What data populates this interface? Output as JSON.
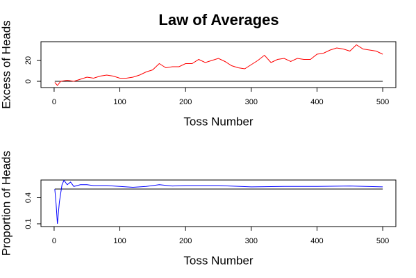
{
  "chart_data": [
    {
      "type": "line",
      "title": "Law of Averages",
      "xlabel": "Toss Number",
      "ylabel": "Excess of Heads",
      "x": [
        1,
        5,
        10,
        20,
        30,
        40,
        50,
        60,
        70,
        80,
        90,
        100,
        110,
        120,
        130,
        140,
        150,
        160,
        170,
        180,
        190,
        200,
        210,
        220,
        230,
        240,
        250,
        260,
        270,
        280,
        290,
        300,
        310,
        320,
        330,
        340,
        350,
        360,
        370,
        380,
        390,
        400,
        410,
        420,
        430,
        440,
        450,
        460,
        470,
        480,
        490,
        500
      ],
      "series": [
        {
          "color": "#ff0000",
          "values": [
            -1,
            -4,
            0,
            1,
            0,
            2,
            4,
            3,
            5,
            6,
            5,
            3,
            3,
            4,
            6,
            9,
            11,
            17,
            13,
            14,
            14,
            17,
            17,
            21,
            18,
            20,
            22,
            19,
            15,
            13,
            12,
            16,
            20,
            25,
            18,
            21,
            22,
            19,
            22,
            21,
            21,
            26,
            27,
            30,
            32,
            31,
            29,
            35,
            31,
            30,
            29,
            26
          ]
        }
      ],
      "reference_line": 0,
      "xlim": [
        -20,
        520
      ],
      "ylim": [
        -6,
        38
      ],
      "xticks": [
        0,
        100,
        200,
        300,
        400,
        500
      ],
      "yticks": [
        0,
        20
      ]
    },
    {
      "type": "line",
      "xlabel": "Toss Number",
      "ylabel": "Proportion of Heads",
      "x": [
        1,
        3,
        5,
        8,
        12,
        15,
        20,
        25,
        30,
        40,
        50,
        60,
        80,
        100,
        120,
        140,
        160,
        180,
        200,
        250,
        300,
        350,
        400,
        450,
        500
      ],
      "series": [
        {
          "color": "#0000ff",
          "values": [
            0.5,
            0.33,
            0.1,
            0.35,
            0.55,
            0.6,
            0.55,
            0.58,
            0.53,
            0.55,
            0.55,
            0.54,
            0.54,
            0.53,
            0.52,
            0.53,
            0.55,
            0.535,
            0.54,
            0.54,
            0.525,
            0.53,
            0.53,
            0.535,
            0.525
          ]
        }
      ],
      "reference_line": 0.5,
      "xlim": [
        -20,
        520
      ],
      "ylim": [
        0.068,
        0.604
      ],
      "xticks": [
        0,
        100,
        200,
        300,
        400,
        500
      ],
      "yticks": [
        0.1,
        0.4
      ]
    }
  ]
}
